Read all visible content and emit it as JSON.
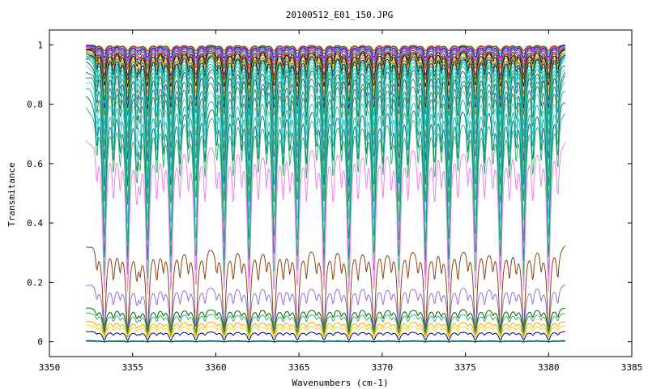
{
  "chart_data": {
    "type": "line",
    "title": "20100512_E01_150.JPG",
    "xlabel": "Wavenumbers (cm-1)",
    "ylabel": "Transmitance",
    "xlim": [
      3350,
      3385
    ],
    "ylim": [
      -0.05,
      1.05
    ],
    "data_x_range": [
      3352.2,
      3381.0
    ],
    "xticks": [
      3350,
      3355,
      3360,
      3365,
      3370,
      3375,
      3380,
      3385
    ],
    "xtick_labels": [
      "3350",
      "3355",
      "3360",
      "3365",
      "3370",
      "3375",
      "3380",
      "3385"
    ],
    "yticks": [
      0,
      0.2,
      0.4,
      0.6,
      0.8,
      1
    ],
    "ytick_labels": [
      "0",
      "0.2",
      "0.4",
      "0.6",
      "0.8",
      "1"
    ],
    "grid": false,
    "legend": "none",
    "major_absorption_lines": [
      3353.3,
      3354.7,
      3355.9,
      3357.3,
      3358.8,
      3360.5,
      3362.0,
      3363.5,
      3364.9,
      3366.5,
      3368.0,
      3369.5,
      3371.0,
      3372.6,
      3374.0,
      3375.6,
      3377.1,
      3378.5,
      3380.0
    ],
    "series": [
      {
        "baseline": 1.0,
        "depth": 0.02,
        "color": "#ff0000"
      },
      {
        "baseline": 1.0,
        "depth": 0.03,
        "color": "#00aa00"
      },
      {
        "baseline": 0.998,
        "depth": 0.04,
        "color": "#0000ff"
      },
      {
        "baseline": 0.997,
        "depth": 0.05,
        "color": "#ff00ff"
      },
      {
        "baseline": 0.995,
        "depth": 0.06,
        "color": "#00aaaa"
      },
      {
        "baseline": 0.993,
        "depth": 0.07,
        "color": "#a0522d"
      },
      {
        "baseline": 0.99,
        "depth": 0.09,
        "color": "#800080"
      },
      {
        "baseline": 0.987,
        "depth": 0.1,
        "color": "#556b2f"
      },
      {
        "baseline": 0.985,
        "depth": 0.12,
        "color": "#000000"
      },
      {
        "baseline": 0.982,
        "depth": 0.14,
        "color": "#ff8c00"
      },
      {
        "baseline": 0.978,
        "depth": 0.16,
        "color": "#228b22"
      },
      {
        "baseline": 0.974,
        "depth": 0.18,
        "color": "#191970"
      },
      {
        "baseline": 0.97,
        "depth": 0.2,
        "color": "#2e8b57"
      },
      {
        "baseline": 0.965,
        "depth": 0.23,
        "color": "#00ced1"
      },
      {
        "baseline": 0.96,
        "depth": 0.26,
        "color": "#20b2aa"
      },
      {
        "baseline": 0.955,
        "depth": 0.29,
        "color": "#3cb371"
      },
      {
        "baseline": 0.945,
        "depth": 0.32,
        "color": "#1e5a8c"
      },
      {
        "baseline": 0.935,
        "depth": 0.35,
        "color": "#66cdaa"
      },
      {
        "baseline": 0.92,
        "depth": 0.38,
        "color": "#008b8b"
      },
      {
        "baseline": 0.905,
        "depth": 0.42,
        "color": "#2e8b57"
      },
      {
        "baseline": 0.885,
        "depth": 0.46,
        "color": "#48d1cc"
      },
      {
        "baseline": 0.86,
        "depth": 0.5,
        "color": "#20b2aa"
      },
      {
        "baseline": 0.83,
        "depth": 0.53,
        "color": "#008080"
      },
      {
        "baseline": 0.795,
        "depth": 0.55,
        "color": "#3cb371"
      },
      {
        "baseline": 0.69,
        "depth": 0.5,
        "color": "#ee82ee"
      },
      {
        "baseline": 0.33,
        "depth": 0.28,
        "color": "#8b4513"
      },
      {
        "baseline": 0.195,
        "depth": 0.16,
        "color": "#9370db"
      },
      {
        "baseline": 0.115,
        "depth": 0.08,
        "color": "#006400"
      },
      {
        "baseline": 0.098,
        "depth": 0.07,
        "color": "#3cb371"
      },
      {
        "baseline": 0.07,
        "depth": 0.05,
        "color": "#ffa500"
      },
      {
        "baseline": 0.055,
        "depth": 0.04,
        "color": "#ffd700"
      },
      {
        "baseline": 0.035,
        "depth": 0.03,
        "color": "#00008b"
      },
      {
        "baseline": 0.004,
        "depth": 0.005,
        "color": "#00aa00"
      },
      {
        "baseline": 0.002,
        "depth": 0.002,
        "color": "#0000ff"
      }
    ]
  }
}
